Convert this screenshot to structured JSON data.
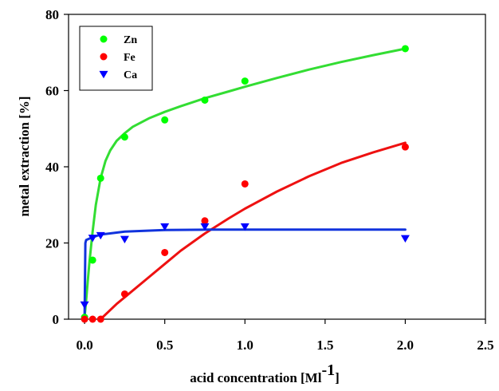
{
  "chart_data": {
    "type": "scatter",
    "title": "",
    "xlabel": "acid concentration [Ml",
    "xlabel_superscript": "-1",
    "xlabel_suffix": "]",
    "ylabel": "metal extraction [%]",
    "xlim": [
      -0.1,
      2.5
    ],
    "ylim": [
      0,
      80
    ],
    "xticks": [
      0.0,
      0.5,
      1.0,
      1.5,
      2.0,
      2.5
    ],
    "xtick_labels": [
      "0.0",
      "0.5",
      "1.0",
      "1.5",
      "2.0",
      "2.5"
    ],
    "yticks": [
      0,
      20,
      40,
      60,
      80
    ],
    "ytick_labels": [
      "0",
      "20",
      "40",
      "60",
      "80"
    ],
    "grid": false,
    "legend_position": "top-left",
    "series": [
      {
        "name": "Zn",
        "marker": "circle",
        "color": "#00ff00",
        "line_color": "#33dd33",
        "x": [
          0.0,
          0.05,
          0.1,
          0.25,
          0.5,
          0.75,
          1.0,
          2.0
        ],
        "y": [
          0.5,
          15.5,
          37.0,
          47.8,
          52.3,
          57.5,
          62.5,
          71.0
        ],
        "fit_x": [
          0.0,
          0.01,
          0.02,
          0.03,
          0.05,
          0.07,
          0.1,
          0.13,
          0.16,
          0.2,
          0.25,
          0.3,
          0.4,
          0.5,
          0.6,
          0.75,
          0.9,
          1.0,
          1.2,
          1.4,
          1.6,
          1.8,
          2.0
        ],
        "fit_y": [
          0.5,
          5.0,
          10.0,
          15.0,
          23.0,
          30.0,
          37.0,
          41.5,
          44.3,
          46.8,
          48.8,
          50.5,
          52.7,
          54.4,
          55.9,
          58.0,
          59.8,
          61.0,
          63.3,
          65.5,
          67.5,
          69.3,
          71.0
        ]
      },
      {
        "name": "Fe",
        "marker": "circle",
        "color": "#ff0000",
        "line_color": "#ee1111",
        "x": [
          0.0,
          0.05,
          0.1,
          0.25,
          0.5,
          0.75,
          1.0,
          2.0
        ],
        "y": [
          0.0,
          0.0,
          0.0,
          6.6,
          17.5,
          25.8,
          35.5,
          45.2
        ],
        "fit_x": [
          0.1,
          0.15,
          0.2,
          0.3,
          0.4,
          0.5,
          0.6,
          0.75,
          0.9,
          1.0,
          1.2,
          1.4,
          1.6,
          1.8,
          2.0
        ],
        "fit_y": [
          0.0,
          2.0,
          4.0,
          7.5,
          11.0,
          14.5,
          18.0,
          22.5,
          26.5,
          29.0,
          33.5,
          37.5,
          41.0,
          43.8,
          46.3
        ]
      },
      {
        "name": "Ca",
        "marker": "triangle-down",
        "color": "#0000ff",
        "line_color": "#1133dd",
        "x": [
          0.0,
          0.05,
          0.1,
          0.25,
          0.5,
          0.75,
          1.0,
          2.0
        ],
        "y": [
          3.8,
          21.3,
          22.0,
          21.0,
          24.3,
          24.3,
          24.3,
          21.2
        ],
        "fit_x": [
          0.0,
          0.005,
          0.01,
          0.05,
          0.1,
          0.25,
          0.5,
          0.75,
          1.0,
          1.5,
          2.0
        ],
        "fit_y": [
          0.0,
          20.0,
          20.8,
          21.5,
          22.2,
          23.0,
          23.4,
          23.5,
          23.5,
          23.5,
          23.5
        ]
      }
    ]
  }
}
